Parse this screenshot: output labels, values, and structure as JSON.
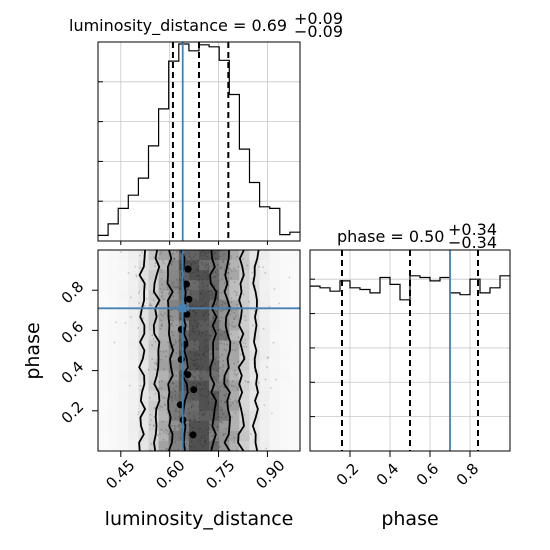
{
  "chart_data": [
    {
      "type": "histogram",
      "panel": "luminosity_distance marginal",
      "title": {
        "param": "luminosity_distance",
        "median": "0.69",
        "plus": "+0.09",
        "minus": "−0.09"
      },
      "x_range": [
        0.38,
        1.0
      ],
      "bin_edges": [
        0.38,
        0.411,
        0.442,
        0.473,
        0.504,
        0.535,
        0.566,
        0.597,
        0.628,
        0.659,
        0.69,
        0.721,
        0.752,
        0.783,
        0.814,
        0.845,
        0.876,
        0.907,
        0.938,
        0.969,
        1.0
      ],
      "density": [
        0.014,
        0.043,
        0.082,
        0.115,
        0.158,
        0.239,
        0.332,
        0.452,
        0.495,
        0.478,
        0.493,
        0.488,
        0.454,
        0.368,
        0.231,
        0.147,
        0.086,
        0.082,
        0.016,
        0.022
      ],
      "quantiles": [
        0.61,
        0.69,
        0.78
      ],
      "truth": 0.64,
      "y_range": [
        0,
        0.5
      ]
    },
    {
      "type": "histogram",
      "panel": "phase marginal",
      "title": {
        "param": "phase",
        "median": "0.50",
        "plus": "+0.34",
        "minus": "−0.34"
      },
      "x_range": [
        0.0,
        1.0
      ],
      "bin_edges": [
        0.0,
        0.05,
        0.1,
        0.15,
        0.2,
        0.25,
        0.3,
        0.35,
        0.4,
        0.45,
        0.5,
        0.55,
        0.6,
        0.65,
        0.7,
        0.75,
        0.8,
        0.85,
        0.9,
        0.95,
        1.0
      ],
      "density": [
        0.96,
        0.95,
        0.93,
        0.99,
        0.95,
        0.94,
        0.92,
        1.01,
        0.97,
        0.88,
        1.02,
        1.01,
        0.99,
        1.01,
        0.92,
        0.91,
        1.0,
        0.92,
        0.95,
        1.02
      ],
      "quantiles": [
        0.16,
        0.5,
        0.84
      ],
      "truth": 0.7,
      "y_range": [
        0,
        1.17
      ]
    },
    {
      "type": "heatmap",
      "panel": "2D joint luminosity_distance vs phase",
      "x_range": [
        0.38,
        1.0
      ],
      "y_range": [
        0.0,
        1.0
      ],
      "truth": {
        "x": 0.64,
        "y": 0.71
      },
      "contour_widths": [
        0.044,
        0.087,
        0.13,
        0.174
      ]
    }
  ],
  "axes": {
    "x_ticks_left": [
      "0.45",
      "0.60",
      "0.75",
      "0.90"
    ],
    "x_ticks_right": [
      "0.2",
      "0.4",
      "0.6",
      "0.8"
    ],
    "y_ticks_phase": [
      "0.2",
      "0.4",
      "0.6",
      "0.8"
    ],
    "x_label_left": "luminosity_distance",
    "x_label_right": "phase",
    "y_label": "phase"
  },
  "colors": {
    "truth": "#4682b4",
    "hist": "#000000",
    "grid": "#c8c8c8"
  }
}
